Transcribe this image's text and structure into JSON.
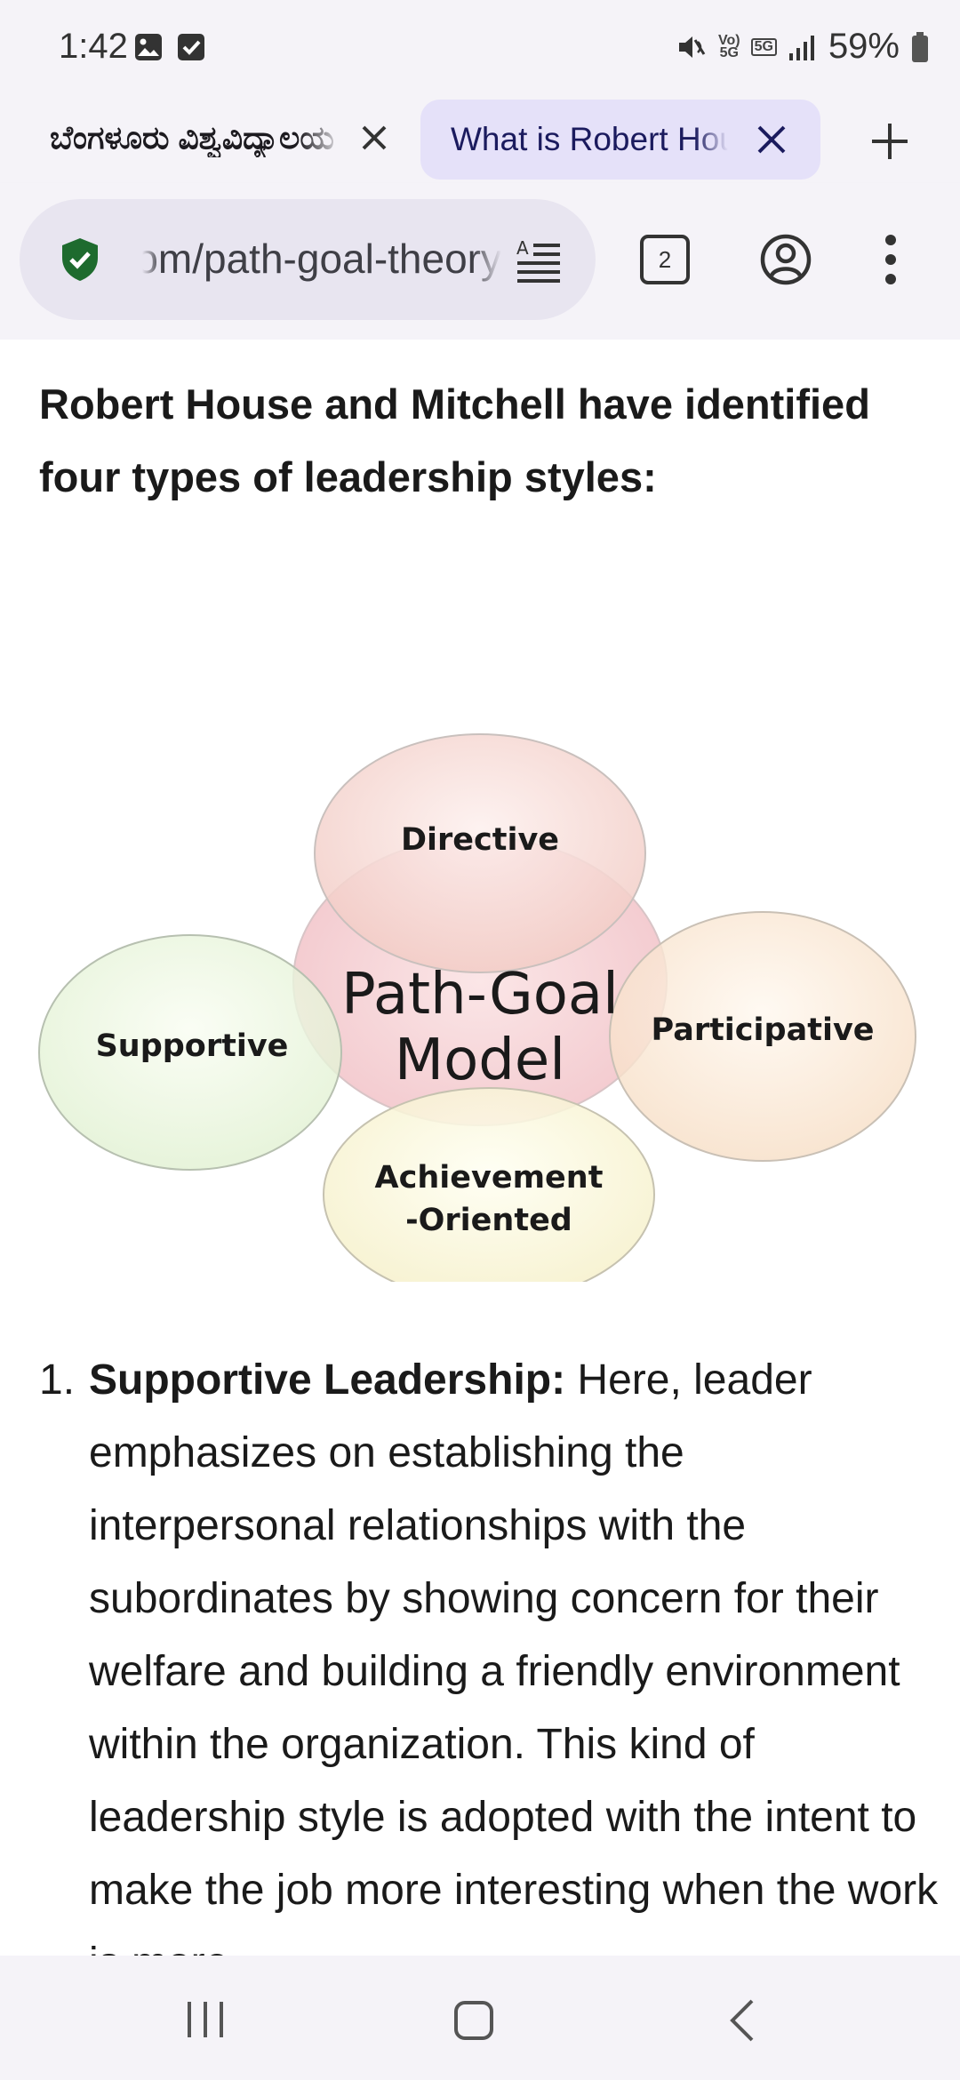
{
  "status_bar": {
    "time": "1:42",
    "volte_label": "Vo)",
    "volte_sub": "5G",
    "network_label": "5G",
    "battery_percent": "59%"
  },
  "tabs": [
    {
      "title": "ಬೆಂಗಳೂರು ವಿಶ್ವವಿದ್ಯಾಲಯ",
      "active": false
    },
    {
      "title": "What is Robert House",
      "active": true
    }
  ],
  "toolbar": {
    "url": "businessjargons.com/path-goal-theory",
    "tab_count": "2"
  },
  "article": {
    "heading": "Robert House and Mitchell have identified four types of leadership styles:",
    "diagram": {
      "center": [
        "Path-Goal",
        "Model"
      ],
      "top": "Directive",
      "left": "Supportive",
      "right": "Participative",
      "bottom": [
        "Achievement",
        "-Oriented"
      ]
    },
    "list_item_1": {
      "number": "1.",
      "term": "Supportive Leadership:",
      "text": " Here, leader emphasizes on establishing the interpersonal relationships with the subordinates by showing concern for their welfare and building a friendly environment within the organization. This kind of leadership style is adopted with the intent to make the job more interesting when the work is more"
    }
  },
  "colors": {
    "active_tab_bg": "#e5e1f9",
    "shield_green": "#1e6b2e",
    "chrome_bg": "#f5f3f8"
  }
}
